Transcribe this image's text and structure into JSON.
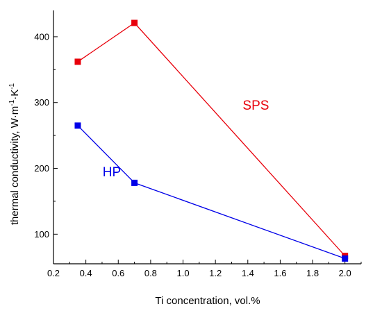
{
  "chart_data": {
    "type": "line",
    "xlabel": "Ti concentration, vol.%",
    "ylabel_main": "thermal conductivity, W·m",
    "ylabel_exp1": "-1",
    "ylabel_mid": "·K",
    "ylabel_exp2": "-1",
    "xlim": [
      0.2,
      2.1
    ],
    "ylim": [
      55,
      440
    ],
    "xticks": [
      "0.2",
      "0.4",
      "0.6",
      "0.8",
      "1.0",
      "1.2",
      "1.4",
      "1.6",
      "1.8",
      "2.0"
    ],
    "yticks": [
      "100",
      "200",
      "300",
      "400"
    ],
    "grid": false,
    "series": [
      {
        "name": "SPS",
        "color": "#e8000b",
        "points": [
          {
            "x": 0.35,
            "y": 362
          },
          {
            "x": 0.7,
            "y": 421
          },
          {
            "x": 2.0,
            "y": 67
          }
        ],
        "label_anchor": {
          "x": 1.45,
          "y": 289
        }
      },
      {
        "name": "HP",
        "color": "#0000e8",
        "points": [
          {
            "x": 0.35,
            "y": 265
          },
          {
            "x": 0.7,
            "y": 178
          },
          {
            "x": 2.0,
            "y": 63
          }
        ],
        "label_anchor": {
          "x": 0.56,
          "y": 188
        }
      }
    ]
  }
}
